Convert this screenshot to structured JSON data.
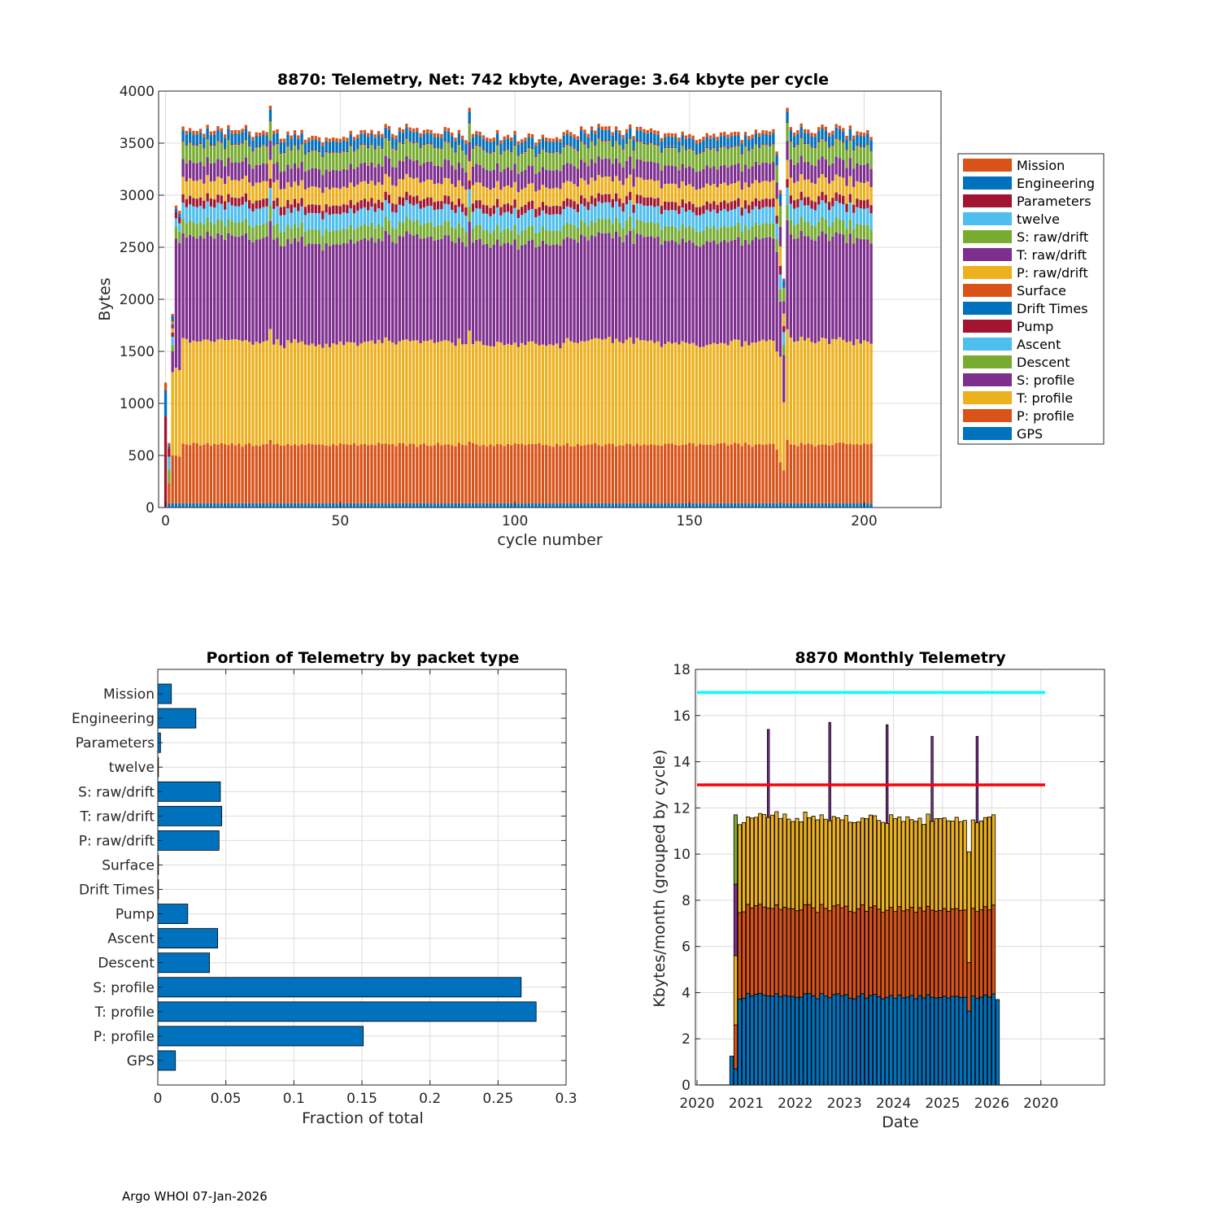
{
  "footer": "Argo WHOI 07-Jan-2026",
  "chart_data": [
    {
      "id": "telemetry_per_cycle",
      "type": "bar",
      "stacked": true,
      "title": "8870: Telemetry, Net:    742 kbyte,  Average: 3.64 kbyte per cycle",
      "xlabel": "cycle number",
      "ylabel": "Bytes",
      "xlim": [
        -2,
        222
      ],
      "ylim": [
        0,
        4000
      ],
      "xticks": [
        0,
        50,
        100,
        150,
        200
      ],
      "yticks": [
        0,
        500,
        1000,
        1500,
        2000,
        2500,
        3000,
        3500,
        4000
      ],
      "grid": true,
      "legend_position": "outside-right",
      "n_cycles": 203,
      "series": [
        {
          "name": "GPS",
          "color": "#0072BD",
          "typical": 40
        },
        {
          "name": "P: profile",
          "color": "#D95319",
          "typical": 575
        },
        {
          "name": "T: profile",
          "color": "#EDB120",
          "typical": 1000
        },
        {
          "name": "S: profile",
          "color": "#7E2F8E",
          "typical": 1000
        },
        {
          "name": "Descent",
          "color": "#77AC30",
          "typical": 140
        },
        {
          "name": "Ascent",
          "color": "#4DBEEE",
          "typical": 160
        },
        {
          "name": "Pump",
          "color": "#A2142F",
          "typical": 80
        },
        {
          "name": "Drift Times",
          "color": "#0072BD",
          "typical": 2
        },
        {
          "name": "Surface",
          "color": "#D95319",
          "typical": 2
        },
        {
          "name": "P: raw/drift",
          "color": "#EDB120",
          "typical": 170
        },
        {
          "name": "T: raw/drift",
          "color": "#7E2F8E",
          "typical": 175
        },
        {
          "name": "S: raw/drift",
          "color": "#77AC30",
          "typical": 170
        },
        {
          "name": "twelve",
          "color": "#4DBEEE",
          "typical": 2
        },
        {
          "name": "Parameters",
          "color": "#A2142F",
          "typical": 10
        },
        {
          "name": "Engineering",
          "color": "#0072BD",
          "typical": 100
        },
        {
          "name": "Mission",
          "color": "#D95319",
          "typical": 35
        }
      ],
      "legend_order": [
        "Mission",
        "Engineering",
        "Parameters",
        "twelve",
        "S: raw/drift",
        "T: raw/drift",
        "P: raw/drift",
        "Surface",
        "Drift Times",
        "Pump",
        "Ascent",
        "Descent",
        "S: profile",
        "T: profile",
        "P: profile",
        "GPS"
      ],
      "cycle_totals": [
        {
          "cycle": 0,
          "total": 1200
        },
        {
          "cycle": 1,
          "total": 620
        },
        {
          "cycle": 2,
          "total": 1860
        },
        {
          "cycle": 3,
          "total": 2900
        },
        {
          "cycle": 4,
          "total": 2850
        },
        {
          "cycle": 5,
          "total": 3660
        },
        {
          "cycle": 30,
          "total": 3860
        },
        {
          "cycle": 87,
          "total": 3840
        },
        {
          "cycle": 175,
          "total": 3420
        },
        {
          "cycle": 176,
          "total": 3050
        },
        {
          "cycle": 177,
          "total": 2200
        },
        {
          "cycle": 178,
          "total": 3840
        },
        {
          "cycle": 202,
          "total": 3560
        }
      ]
    },
    {
      "id": "portion_by_packet",
      "type": "bar",
      "orientation": "horizontal",
      "title": "Portion of Telemetry by packet type",
      "xlabel": "Fraction of total",
      "ylabel": "",
      "xlim": [
        0,
        0.3
      ],
      "xticks": [
        0,
        0.05,
        0.1,
        0.15,
        0.2,
        0.25,
        0.3
      ],
      "xtick_labels": [
        "0",
        "0.05",
        "0.1",
        "0.15",
        "0.2",
        "0.25",
        "0.3"
      ],
      "grid": true,
      "bar_color": "#0072BD",
      "categories": [
        "Mission",
        "Engineering",
        "Parameters",
        "twelve",
        "S: raw/drift",
        "T: raw/drift",
        "P: raw/drift",
        "Surface",
        "Drift Times",
        "Pump",
        "Ascent",
        "Descent",
        "S: profile",
        "T: profile",
        "P: profile",
        "GPS"
      ],
      "values": [
        0.01,
        0.028,
        0.002,
        0.0005,
        0.046,
        0.047,
        0.045,
        0.0005,
        0.0005,
        0.022,
        0.044,
        0.038,
        0.267,
        0.278,
        0.151,
        0.013
      ]
    },
    {
      "id": "monthly_telemetry",
      "type": "bar",
      "stacked": true,
      "title": "8870 Monthly Telemetry",
      "xlabel": "Date",
      "ylabel": "Kbytes/month (grouped by cycle)",
      "ylim": [
        0,
        18
      ],
      "yticks": [
        0,
        2,
        4,
        6,
        8,
        10,
        12,
        14,
        16,
        18
      ],
      "xtick_labels": [
        "2020",
        "2021",
        "2022",
        "2023",
        "2024",
        "2025",
        "2026",
        "2020"
      ],
      "grid": true,
      "reference_lines": [
        {
          "value": 17,
          "color": "#00FFFF"
        },
        {
          "value": 13,
          "color": "#FF0000"
        }
      ],
      "segment_colors": [
        "#0072BD",
        "#D95319",
        "#EDB120",
        "#7E2F8E",
        "#77AC30"
      ],
      "months_start": "2020-09",
      "n_months": 66,
      "typical_month": {
        "part1": 3.85,
        "part2": 3.8,
        "part3": 3.9
      },
      "spike_months": [
        {
          "month": "2021-06",
          "total": 15.4
        },
        {
          "month": "2022-09",
          "total": 15.7
        },
        {
          "month": "2023-11",
          "total": 15.6
        },
        {
          "month": "2024-10",
          "total": 15.1
        },
        {
          "month": "2025-09",
          "total": 15.1
        }
      ]
    }
  ]
}
